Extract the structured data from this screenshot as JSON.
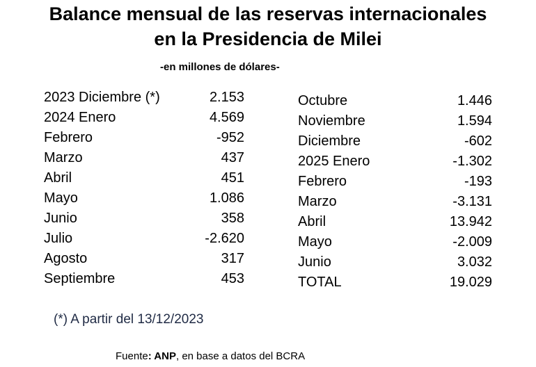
{
  "title": {
    "line1": "Balance mensual de las reservas internacionales",
    "line2": "en la Presidencia de Milei"
  },
  "subtitle": "-en millones de dólares-",
  "table": {
    "left": [
      {
        "label": "2023 Diciembre (*)",
        "value": "2.153"
      },
      {
        "label": "2024 Enero",
        "value": "4.569"
      },
      {
        "label": "Febrero",
        "value": "-952"
      },
      {
        "label": "Marzo",
        "value": "437"
      },
      {
        "label": "Abril",
        "value": "451"
      },
      {
        "label": "Mayo",
        "value": "1.086"
      },
      {
        "label": "Junio",
        "value": "358"
      },
      {
        "label": "Julio",
        "value": "-2.620"
      },
      {
        "label": "Agosto",
        "value": "317"
      },
      {
        "label": "Septiembre",
        "value": "453"
      }
    ],
    "right": [
      {
        "label": "Octubre",
        "value": "1.446"
      },
      {
        "label": "Noviembre",
        "value": "1.594"
      },
      {
        "label": "Diciembre",
        "value": "-602"
      },
      {
        "label": "2025 Enero",
        "value": "-1.302"
      },
      {
        "label": "Febrero",
        "value": "-193"
      },
      {
        "label": "Marzo",
        "value": "-3.131"
      },
      {
        "label": "Abril",
        "value": "13.942"
      },
      {
        "label": "Mayo",
        "value": "-2.009"
      },
      {
        "label": "Junio",
        "value": "3.032"
      },
      {
        "label": "TOTAL",
        "value": "19.029"
      }
    ]
  },
  "footnote": "(*) A partir del 13/12/2023",
  "source": {
    "prefix": "Fuente",
    "bold": ": ANP",
    "rest": ", en base a datos del BCRA"
  }
}
